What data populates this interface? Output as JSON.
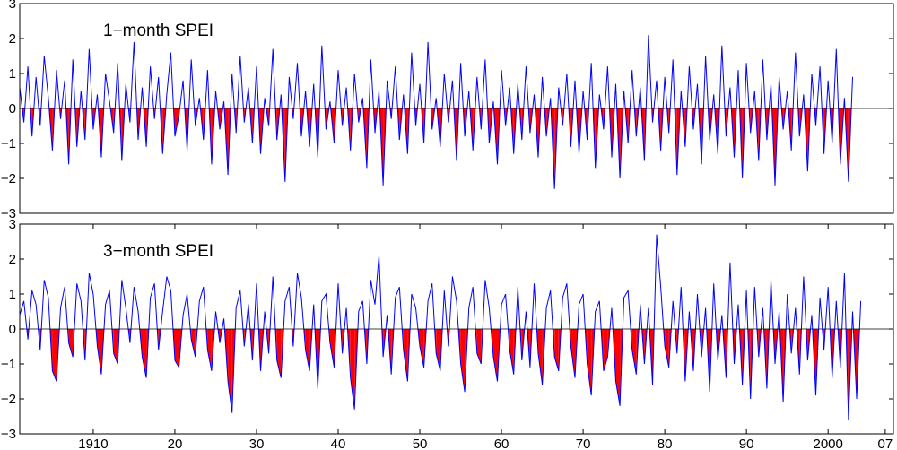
{
  "chart_data": [
    {
      "type": "area",
      "title": "1−month SPEI",
      "ylim": [
        -3,
        3
      ],
      "yticks": [
        -3,
        -2,
        -1,
        0,
        1,
        2,
        3
      ],
      "ytick_labels": [
        "−3",
        "−2",
        "−1",
        "0",
        "1",
        "2",
        "3"
      ],
      "xlim": [
        1901,
        2008
      ],
      "grid": false,
      "series": [
        {
          "x_start": 1901,
          "step_years": 0.5,
          "values": [
            0.6,
            -0.4,
            1.2,
            -0.8,
            0.9,
            -0.5,
            1.5,
            0.3,
            -1.2,
            1.1,
            -0.3,
            0.8,
            -1.6,
            1.4,
            -1.1,
            0.5,
            -0.9,
            1.7,
            -0.6,
            0.4,
            -1.4,
            1.0,
            0.2,
            -0.7,
            1.3,
            -1.5,
            0.7,
            -0.4,
            1.9,
            -0.9,
            0.6,
            -1.1,
            1.2,
            -0.3,
            0.9,
            -1.3,
            0.4,
            1.6,
            -0.8,
            -0.2,
            0.8,
            -1.2,
            1.4,
            -0.5,
            0.3,
            -0.9,
            1.1,
            -1.6,
            0.5,
            -0.6,
            0.2,
            -1.9,
            1.0,
            -0.7,
            1.5,
            -0.4,
            0.6,
            -1.0,
            1.2,
            -1.3,
            0.3,
            -0.5,
            1.7,
            -0.9,
            0.4,
            -2.1,
            0.9,
            -0.3,
            1.3,
            -0.8,
            0.5,
            -1.1,
            0.7,
            -1.4,
            1.8,
            -0.6,
            0.2,
            -1.0,
            1.1,
            -0.5,
            0.6,
            -1.2,
            1.0,
            -0.4,
            0.3,
            -1.7,
            1.4,
            -0.7,
            0.5,
            -2.2,
            0.8,
            -0.3,
            1.2,
            -0.9,
            0.4,
            -1.3,
            1.6,
            -0.5,
            0.7,
            -1.0,
            1.9,
            -0.6,
            0.3,
            -1.1,
            1.0,
            -0.4,
            0.8,
            -1.5,
            1.3,
            -0.8,
            0.5,
            -1.2,
            0.9,
            -0.6,
            1.4,
            -1.0,
            0.2,
            -1.6,
            1.1,
            -0.5,
            0.6,
            -1.3,
            0.7,
            -0.9,
            1.2,
            -0.7,
            0.4,
            -1.4,
            0.9,
            -0.8,
            0.3,
            -2.3,
            0.6,
            -0.5,
            1.0,
            -1.1,
            0.8,
            -1.3,
            0.5,
            -0.9,
            1.3,
            -1.7,
            0.4,
            -0.6,
            1.2,
            -1.4,
            0.7,
            -2.0,
            0.5,
            -1.0,
            1.1,
            -0.8,
            0.6,
            -1.5,
            2.1,
            -0.4,
            0.8,
            -1.2,
            0.9,
            -0.7,
            1.4,
            -1.9,
            0.5,
            -1.1,
            1.2,
            -0.6,
            0.7,
            -1.6,
            1.5,
            -0.9,
            0.4,
            -1.3,
            1.8,
            -0.8,
            0.6,
            -1.4,
            1.1,
            -2.0,
            1.3,
            -0.7,
            0.5,
            -1.5,
            1.4,
            -0.9,
            0.7,
            -2.2,
            0.9,
            -0.6,
            0.5,
            -1.2,
            1.6,
            -0.8,
            0.4,
            -1.8,
            1.0,
            -0.5,
            1.2,
            -1.3,
            0.8,
            -1.0,
            1.7,
            -1.6,
            0.3,
            -2.1,
            0.9
          ]
        }
      ]
    },
    {
      "type": "area",
      "title": "3−month SPEI",
      "ylim": [
        -3,
        3
      ],
      "yticks": [
        -3,
        -2,
        -1,
        0,
        1,
        2,
        3
      ],
      "ytick_labels": [
        "−3",
        "−2",
        "−1",
        "0",
        "1",
        "2",
        "3"
      ],
      "xlim": [
        1901,
        2008
      ],
      "xticks": [
        1910,
        1920,
        1930,
        1940,
        1950,
        1960,
        1970,
        1980,
        1990,
        2000,
        2007
      ],
      "xtick_labels": [
        "1910",
        "20",
        "30",
        "40",
        "50",
        "60",
        "70",
        "80",
        "90",
        "2000",
        "07"
      ],
      "grid": false,
      "series": [
        {
          "x_start": 1901,
          "step_years": 0.5,
          "values": [
            0.4,
            0.8,
            -0.3,
            1.1,
            0.7,
            -0.6,
            1.4,
            0.9,
            -1.2,
            -1.5,
            0.6,
            1.2,
            -0.4,
            -0.8,
            1.3,
            0.8,
            -0.9,
            1.6,
            1.0,
            -0.5,
            -1.3,
            0.7,
            1.1,
            -0.7,
            -1.0,
            1.4,
            0.6,
            -0.4,
            1.2,
            0.5,
            -0.8,
            -1.4,
            0.9,
            1.3,
            -0.6,
            0.5,
            1.5,
            1.1,
            -0.9,
            -1.1,
            0.4,
            1.0,
            -0.3,
            -0.8,
            0.8,
            1.2,
            -0.6,
            -1.2,
            0.5,
            -0.4,
            0.3,
            -1.5,
            -2.4,
            0.6,
            1.1,
            -0.5,
            0.7,
            -0.9,
            1.3,
            -1.2,
            0.5,
            -0.7,
            1.5,
            -0.9,
            -1.4,
            0.8,
            1.2,
            -0.5,
            1.6,
            0.9,
            -0.6,
            -1.2,
            0.7,
            -1.7,
            0.8,
            1.0,
            -0.4,
            -1.1,
            1.3,
            -0.7,
            0.6,
            -1.4,
            -2.3,
            0.5,
            0.8,
            -1.0,
            1.4,
            0.7,
            2.1,
            -0.8,
            0.4,
            -1.3,
            0.9,
            1.2,
            -0.6,
            -1.5,
            1.0,
            0.6,
            -0.5,
            -1.1,
            0.8,
            1.3,
            -0.7,
            -1.2,
            1.1,
            -0.5,
            1.5,
            0.8,
            -1.0,
            -1.8,
            0.6,
            1.2,
            -0.7,
            -1.0,
            1.4,
            0.6,
            -0.8,
            -1.5,
            0.7,
            1.0,
            -0.6,
            -1.3,
            1.2,
            -0.9,
            0.5,
            -1.1,
            1.3,
            -0.7,
            -1.6,
            0.6,
            1.1,
            -0.8,
            -1.2,
            0.9,
            1.3,
            -0.5,
            -1.4,
            0.7,
            1.0,
            -1.0,
            -1.9,
            0.5,
            0.8,
            -1.2,
            -0.8,
            0.6,
            -1.5,
            -2.2,
            0.9,
            1.1,
            -0.6,
            -1.3,
            0.7,
            -1.0,
            0.6,
            -1.6,
            2.7,
            1.2,
            -0.5,
            -1.1,
            0.8,
            -0.7,
            1.2,
            -1.5,
            0.5,
            -1.2,
            1.0,
            -0.8,
            0.6,
            -1.8,
            1.3,
            -0.9,
            0.4,
            -1.4,
            1.9,
            -1.0,
            0.7,
            -1.6,
            1.1,
            -2.0,
            1.2,
            -0.8,
            0.6,
            -1.7,
            1.4,
            -1.0,
            0.5,
            -2.1,
            1.0,
            -0.7,
            0.6,
            -1.3,
            1.5,
            -0.9,
            0.4,
            -1.9,
            0.9,
            -0.6,
            1.2,
            -1.4,
            0.8,
            -1.1,
            1.6,
            -2.6,
            0.5,
            -2.0,
            0.8
          ]
        }
      ]
    }
  ]
}
